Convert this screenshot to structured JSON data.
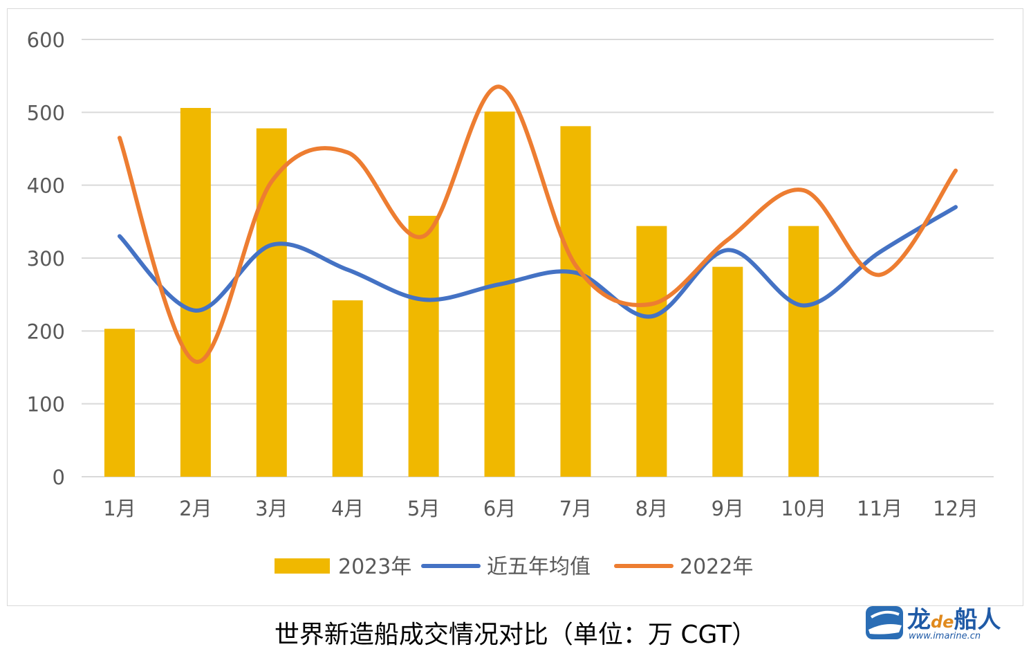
{
  "chart_data": {
    "type": "bar",
    "categories": [
      "1月",
      "2月",
      "3月",
      "4月",
      "5月",
      "6月",
      "7月",
      "8月",
      "9月",
      "10月",
      "11月",
      "12月"
    ],
    "series": [
      {
        "name": "2023年",
        "type": "bar",
        "color": "#f0b800",
        "values": [
          203,
          506,
          478,
          242,
          358,
          501,
          481,
          344,
          288,
          344,
          null,
          null
        ]
      },
      {
        "name": "近五年均值",
        "type": "line",
        "smooth": true,
        "color": "#4472c4",
        "values": [
          330,
          228,
          318,
          284,
          243,
          264,
          280,
          220,
          311,
          235,
          308,
          370
        ]
      },
      {
        "name": "2022年",
        "type": "line",
        "smooth": true,
        "color": "#ed7d31",
        "values": [
          465,
          158,
          405,
          445,
          330,
          535,
          290,
          237,
          325,
          393,
          277,
          420
        ]
      }
    ],
    "ylim": [
      0,
      600
    ],
    "yticks": [
      0,
      100,
      200,
      300,
      400,
      500,
      600
    ],
    "grid": true,
    "legend": "bottom"
  },
  "caption": "世界新造船成交情况对比（单位：万 CGT）",
  "logo": {
    "brand_main": "龙",
    "brand_de": "de",
    "brand_tail": "船人",
    "url": "www.imarine.cn"
  }
}
